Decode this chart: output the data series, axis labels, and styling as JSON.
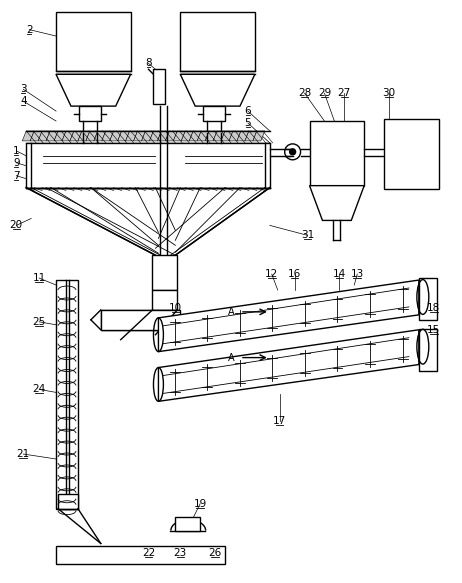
{
  "background_color": "#ffffff",
  "line_color": "#000000",
  "lw": 1.0,
  "tlw": 0.6,
  "hatch_lw": 0.5,
  "label_fs": 7.5,
  "label_color": "#000000"
}
